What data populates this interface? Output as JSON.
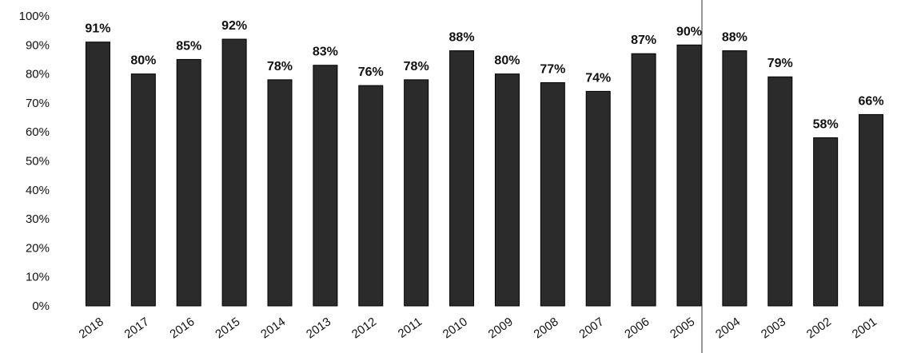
{
  "chart_data": {
    "type": "bar",
    "title": "",
    "xlabel": "",
    "ylabel": "",
    "ylim": [
      0,
      100
    ],
    "y_ticks": [
      "0%",
      "10%",
      "20%",
      "30%",
      "40%",
      "50%",
      "60%",
      "70%",
      "80%",
      "90%",
      "100%"
    ],
    "categories": [
      "2018",
      "2017",
      "2016",
      "2015",
      "2014",
      "2013",
      "2012",
      "2011",
      "2010",
      "2009",
      "2008",
      "2007",
      "2006",
      "2005",
      "2004",
      "2003",
      "2002",
      "2001"
    ],
    "values": [
      91,
      80,
      85,
      92,
      78,
      83,
      76,
      78,
      88,
      80,
      77,
      74,
      87,
      90,
      88,
      79,
      58,
      66
    ],
    "data_labels": [
      "91%",
      "80%",
      "85%",
      "92%",
      "78%",
      "83%",
      "76%",
      "78%",
      "88%",
      "80%",
      "77%",
      "74%",
      "87%",
      "90%",
      "88%",
      "79%",
      "58%",
      "66%"
    ],
    "bar_color": "#2b2b2b",
    "grid": false,
    "legend": "none"
  }
}
